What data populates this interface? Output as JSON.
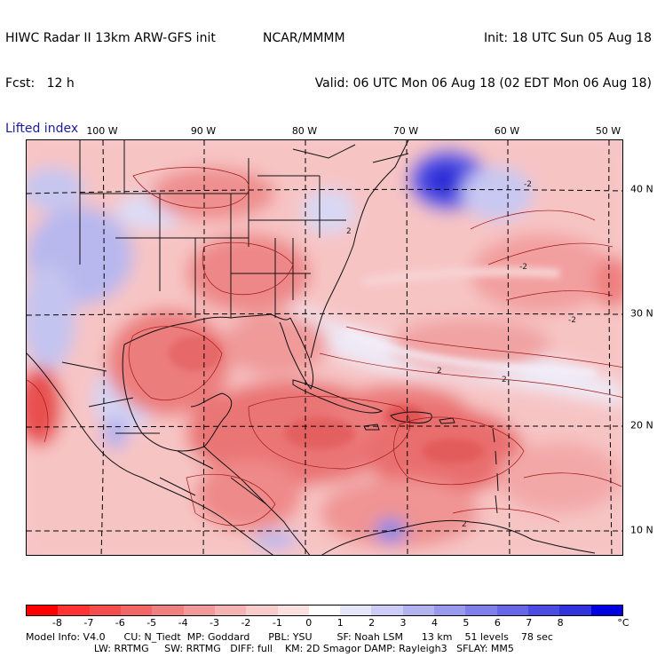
{
  "header": {
    "line1_left": "HIWC Radar II 13km ARW-GFS init",
    "line1_mid": "NCAR/MMMM",
    "line1_right": "Init: 18 UTC Sun 05 Aug 18",
    "line2_left": "Fcst:   12 h",
    "line2_right": "Valid: 06 UTC Mon 06 Aug 18 (02 EDT Mon 06 Aug 18)",
    "field": "Lifted index"
  },
  "map": {
    "lon_labels": [
      "100 W",
      "90 W",
      "80 W",
      "70 W",
      "60 W",
      "50 W"
    ],
    "lat_labels": [
      "40 N",
      "30 N",
      "20 N",
      "10 N"
    ],
    "contour_labels": [
      "-2",
      "2",
      "2",
      "2",
      "-2",
      "-2",
      "2"
    ]
  },
  "colorbar": {
    "colors": [
      "#ff0000",
      "#ff3333",
      "#f54c4c",
      "#f26666",
      "#ee8080",
      "#f29999",
      "#f6b3b3",
      "#f9cccc",
      "#fbe0e0",
      "#ffffff",
      "#e6e6f9",
      "#ccccf6",
      "#b3b3f2",
      "#9999ee",
      "#8080ea",
      "#6666e6",
      "#4c4ce2",
      "#3333de",
      "#0000e0"
    ],
    "labels": [
      "-8",
      "-7",
      "-6",
      "-5",
      "-4",
      "-3",
      "-2",
      "-1",
      "0",
      "1",
      "2",
      "3",
      "4",
      "5",
      "6",
      "7",
      "8"
    ],
    "unit": "°C"
  },
  "footer": {
    "line1": "Model Info: V4.0      CU: N_Tiedt  MP: Goddard      PBL: YSU        SF: Noah LSM      13 km    51 levels    78 sec",
    "line2": "                      LW: RRTMG     SW: RRTMG   DIFF: full    KM: 2D Smagor DAMP: Rayleigh3   SFLAY: MM5"
  }
}
